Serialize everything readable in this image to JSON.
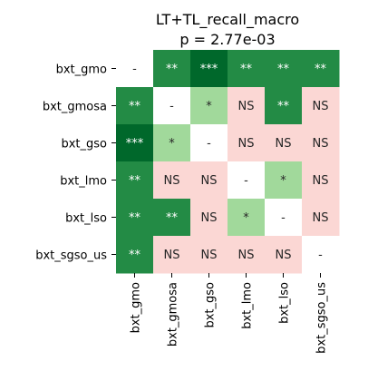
{
  "chart_data": {
    "type": "heatmap",
    "title": "LT+TL_recall_macro",
    "subtitle": "p = 2.77e-03",
    "row_labels": [
      "bxt_gmo",
      "bxt_gmosa",
      "bxt_gso",
      "bxt_lmo",
      "bxt_lso",
      "bxt_sgso_us"
    ],
    "col_labels": [
      "bxt_gmo",
      "bxt_gmosa",
      "bxt_gso",
      "bxt_lmo",
      "bxt_lso",
      "bxt_sgso_us"
    ],
    "cells": [
      [
        "-",
        "**",
        "***",
        "**",
        "**",
        "**"
      ],
      [
        "**",
        "-",
        "*",
        "NS",
        "**",
        "NS"
      ],
      [
        "***",
        "*",
        "-",
        "NS",
        "NS",
        "NS"
      ],
      [
        "**",
        "NS",
        "NS",
        "-",
        "*",
        "NS"
      ],
      [
        "**",
        "**",
        "NS",
        "*",
        "-",
        "NS"
      ],
      [
        "**",
        "NS",
        "NS",
        "NS",
        "NS",
        "-"
      ]
    ],
    "colors": {
      "-": "#ffffff",
      "NS": "#fbd7d4",
      "*": "#a1d99b",
      "**": "#238b45",
      "***": "#00682b"
    },
    "text_colors": {
      "-": "#262626",
      "NS": "#262626",
      "*": "#262626",
      "**": "#ffffff",
      "***": "#ffffff"
    }
  }
}
